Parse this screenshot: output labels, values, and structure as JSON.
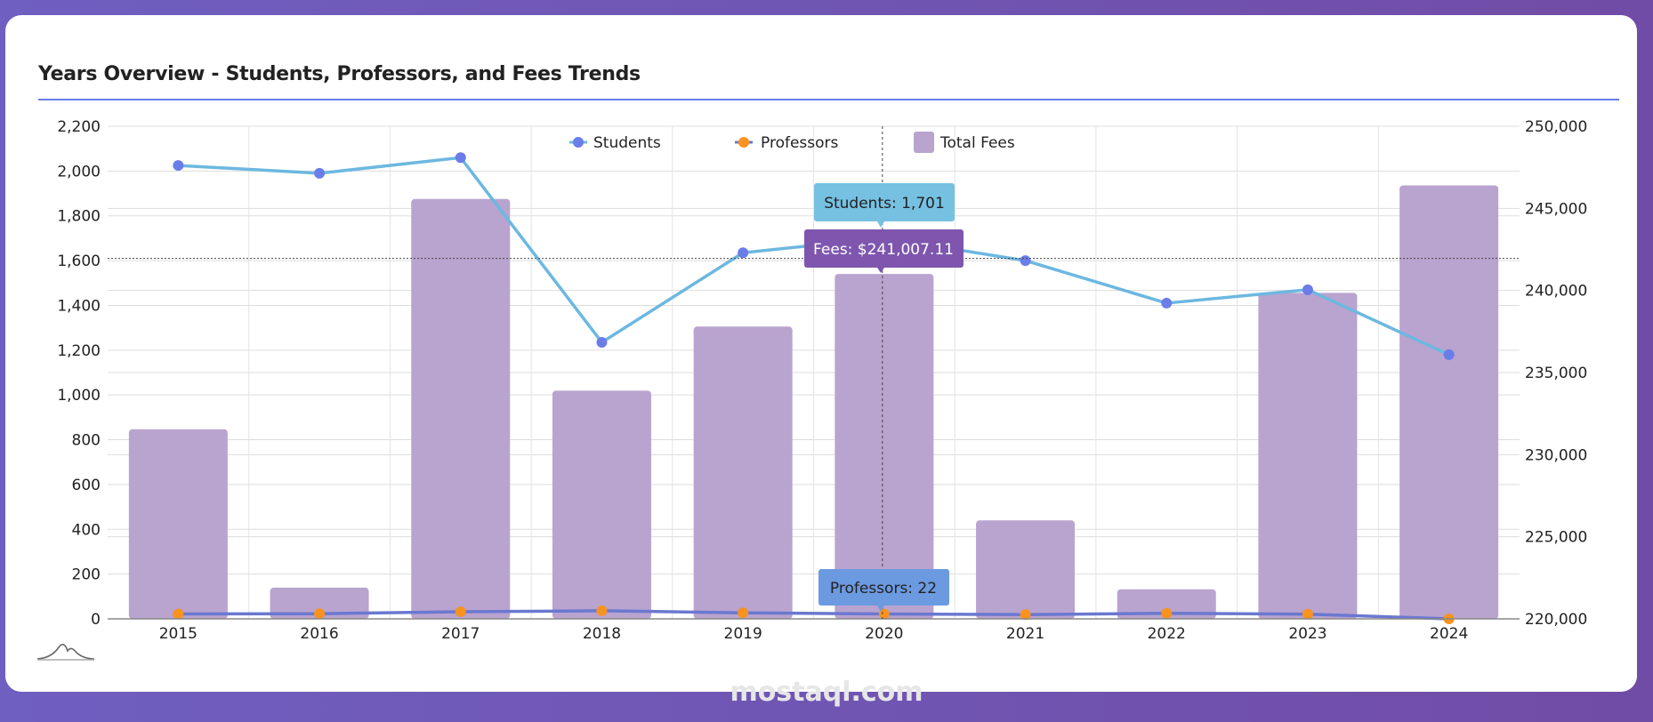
{
  "card": {
    "title": "Years Overview - Students, Professors, and Fees Trends"
  },
  "watermark": "mostaql.com",
  "chart_data": {
    "type": "bar+line",
    "title": "Years Overview - Students, Professors, and Fees Trends",
    "categories": [
      "2015",
      "2016",
      "2017",
      "2018",
      "2019",
      "2020",
      "2021",
      "2022",
      "2023",
      "2024"
    ],
    "y_left": {
      "range": [
        0,
        2200
      ],
      "ticks": [
        "0",
        "200",
        "400",
        "600",
        "800",
        "1,000",
        "1,200",
        "1,400",
        "1,600",
        "1,800",
        "2,000",
        "2,200"
      ]
    },
    "y_right": {
      "range": [
        220000,
        250000
      ],
      "ticks": [
        "220,000",
        "225,000",
        "230,000",
        "235,000",
        "240,000",
        "245,000",
        "250,000"
      ]
    },
    "grid": true,
    "legend": {
      "placement": "top-center"
    },
    "series": [
      {
        "name": "Students",
        "type": "line",
        "axis": "left",
        "line_color": "#6cb8e0",
        "marker_color": "#6a7de8",
        "values": [
          2025,
          1990,
          2060,
          1235,
          1635,
          1701,
          1600,
          1410,
          1470,
          1180
        ]
      },
      {
        "name": "Professors",
        "type": "line",
        "axis": "left",
        "line_color": "#6a78d0",
        "marker_color": "#f7931e",
        "values": [
          22,
          23,
          32,
          36,
          27,
          22,
          19,
          25,
          21,
          0
        ]
      },
      {
        "name": "Total Fees",
        "type": "bar",
        "axis": "right",
        "color": "#b9a3cf",
        "values": [
          231550,
          221900,
          245570,
          233900,
          237800,
          241007.11,
          226000,
          221800,
          239850,
          246400
        ]
      }
    ],
    "tooltips": {
      "students": "Students: 1,701",
      "fees": "Fees: $241,007.11",
      "professors": "Professors: 22"
    },
    "tooltip_colors": {
      "students": "#76c0e2",
      "fees": "#7e56ae",
      "professors": "#6c9ae0"
    },
    "crosshair": {
      "category": "2020",
      "y_left_value": 1610
    }
  }
}
